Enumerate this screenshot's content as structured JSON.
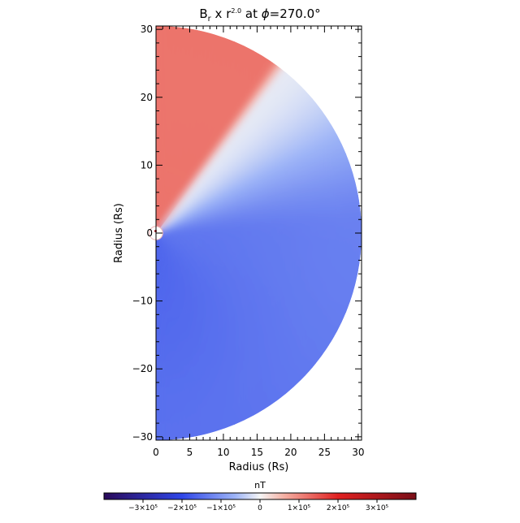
{
  "figure": {
    "title": {
      "main": "B",
      "subscript": "r",
      "middle": " x r",
      "superscript": "2.0",
      "suffix_pre_phi": " at ",
      "phi_symbol": "ϕ",
      "suffix_post_phi": "=270.0°"
    }
  },
  "chart_data": {
    "type": "heatmap",
    "title": "Br x r^2.0 at ϕ=270.0°",
    "xlabel": "Radius (Rs)",
    "ylabel": "Radius (Rs)",
    "xlim": [
      0,
      30.5
    ],
    "ylim": [
      -30.5,
      30.5
    ],
    "x_ticks": [
      "0",
      "5",
      "10",
      "15",
      "20",
      "25",
      "30"
    ],
    "x_tick_values": [
      0,
      5,
      10,
      15,
      20,
      25,
      30
    ],
    "y_ticks": [
      "−30",
      "−20",
      "−10",
      "0",
      "10",
      "20",
      "30"
    ],
    "y_tick_values": [
      -30,
      -20,
      -10,
      0,
      10,
      20,
      30
    ],
    "domain": {
      "shape": "half-disk",
      "inner_radius_rs": 1,
      "outer_radius_rs": 30.5,
      "angle_range_deg": [
        -90,
        90
      ]
    },
    "field": {
      "positive_sector_deg": [
        55,
        90
      ],
      "neutral_line_deg": 52,
      "positive_value": 120000.0,
      "negative_near_neutral": -80000.0,
      "negative_mid": -140000.0,
      "negative_deep": -160000.0
    },
    "colorbar": {
      "label": "nT",
      "range": [
        -400000.0,
        400000.0
      ],
      "tick_labels": [
        "−3×10⁵",
        "−2×10⁵",
        "−1×10⁵",
        "0",
        "1×10⁵",
        "2×10⁵",
        "3×10⁵"
      ],
      "tick_values": [
        -300000.0,
        -200000.0,
        -100000.0,
        0,
        100000.0,
        200000.0,
        300000.0
      ],
      "colors": {
        "min": "#2a0a5a",
        "neg_mid": "#2f46e8",
        "neg_light": "#9db4f7",
        "zero": "#f5f5f5",
        "pos_light": "#f4aea1",
        "pos_mid": "#e02020",
        "max": "#7a0f18"
      }
    }
  }
}
